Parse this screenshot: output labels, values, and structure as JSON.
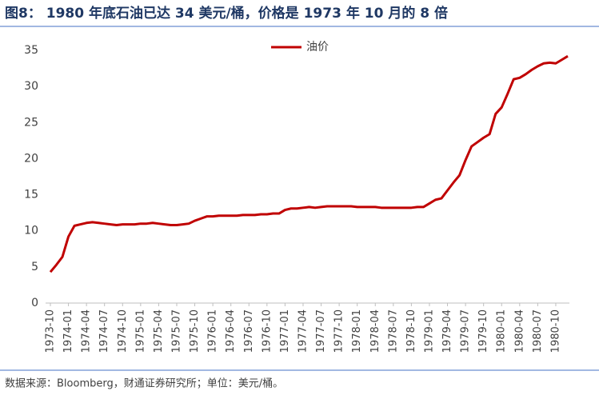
{
  "chart_data": {
    "type": "line",
    "title": "图8： 1980 年底石油已达 34 美元/桶，价格是 1973 年 10 月的 8 倍",
    "source": "数据来源：Bloomberg，财通证券研究所；单位：美元/桶。",
    "categories": [
      "1973-10",
      null,
      null,
      "1974-01",
      null,
      null,
      "1974-04",
      null,
      null,
      "1974-07",
      null,
      null,
      "1974-10",
      null,
      null,
      "1975-01",
      null,
      null,
      "1975-04",
      null,
      null,
      "1975-07",
      null,
      null,
      "1975-10",
      null,
      null,
      "1976-01",
      null,
      null,
      "1976-04",
      null,
      null,
      "1976-07",
      null,
      null,
      "1976-10",
      null,
      null,
      "1977-01",
      null,
      null,
      "1977-04",
      null,
      null,
      "1977-07",
      null,
      null,
      "1977-10",
      null,
      null,
      "1978-01",
      null,
      null,
      "1978-04",
      null,
      null,
      "1978-07",
      null,
      null,
      "1978-10",
      null,
      null,
      "1979-01",
      null,
      null,
      "1979-04",
      null,
      null,
      "1979-07",
      null,
      null,
      "1979-10",
      null,
      null,
      "1980-01",
      null,
      null,
      "1980-04",
      null,
      null,
      "1980-07",
      null,
      null,
      "1980-10",
      null,
      null
    ],
    "series": [
      {
        "name": "油价",
        "color": "#c00000",
        "values": [
          4.3,
          5.3,
          6.4,
          9.2,
          10.7,
          10.9,
          11.1,
          11.2,
          11.1,
          11.0,
          10.9,
          10.8,
          10.9,
          10.9,
          10.9,
          11.0,
          11.0,
          11.1,
          11.0,
          10.9,
          10.8,
          10.8,
          10.9,
          11.0,
          11.4,
          11.7,
          12.0,
          12.0,
          12.1,
          12.1,
          12.1,
          12.1,
          12.2,
          12.2,
          12.2,
          12.3,
          12.3,
          12.4,
          12.4,
          12.9,
          13.1,
          13.1,
          13.2,
          13.3,
          13.2,
          13.3,
          13.4,
          13.4,
          13.4,
          13.4,
          13.4,
          13.3,
          13.3,
          13.3,
          13.3,
          13.2,
          13.2,
          13.2,
          13.2,
          13.2,
          13.2,
          13.3,
          13.3,
          13.8,
          14.3,
          14.5,
          15.6,
          16.7,
          17.7,
          19.8,
          21.7,
          22.3,
          22.9,
          23.4,
          26.2,
          27.1,
          29.0,
          31.0,
          31.2,
          31.7,
          32.3,
          32.8,
          33.2,
          33.3,
          33.2,
          33.7,
          34.2
        ]
      }
    ],
    "ylim": [
      0,
      35
    ],
    "yticks": [
      0,
      5,
      10,
      15,
      20,
      25,
      30,
      35
    ],
    "grid": false,
    "legend": "top"
  }
}
